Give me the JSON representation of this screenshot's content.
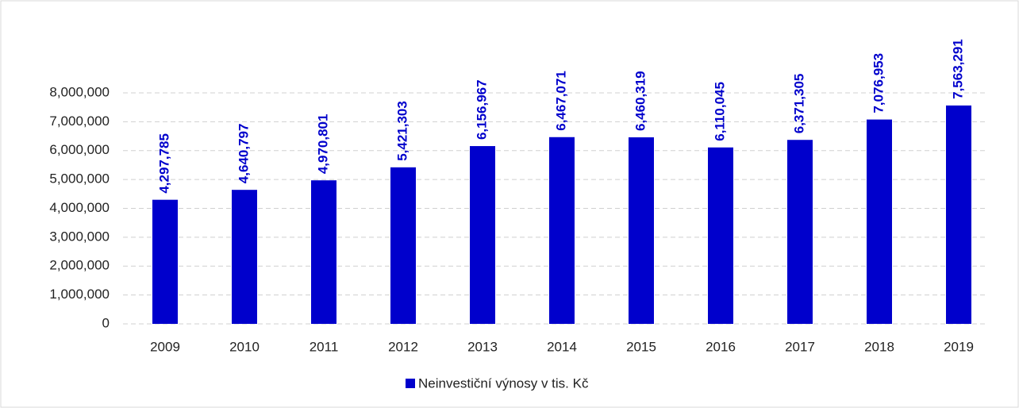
{
  "chart_data": {
    "type": "bar",
    "categories": [
      "2009",
      "2010",
      "2011",
      "2012",
      "2013",
      "2014",
      "2015",
      "2016",
      "2017",
      "2018",
      "2019"
    ],
    "series": [
      {
        "name": "Neinvestiční výnosy v tis. Kč",
        "color": "#0000cc",
        "values": [
          4297785,
          4640797,
          4970801,
          5421303,
          6156967,
          6467071,
          6460319,
          6110045,
          6371305,
          7076953,
          7563291
        ],
        "value_labels": [
          "4,297,785",
          "4,640,797",
          "4,970,801",
          "5,421,303",
          "6,156,967",
          "6,467,071",
          "6,460,319",
          "6,110,045",
          "6,371,305",
          "7,076,953",
          "7,563,291"
        ]
      }
    ],
    "ylim": [
      0,
      8000000
    ],
    "yticks": [
      0,
      {
        "value": 1000000,
        "label": "1,000,000"
      },
      {
        "value": 2000000,
        "label": "2,000,000"
      },
      {
        "value": 3000000,
        "label": "3,000,000"
      },
      {
        "value": 4000000,
        "label": "4,000,000"
      },
      {
        "value": 5000000,
        "label": "5,000,000"
      },
      {
        "value": 6000000,
        "label": "6,000,000"
      },
      {
        "value": 7000000,
        "label": "7,000,000"
      },
      {
        "value": 8000000,
        "label": "8,000,000"
      }
    ],
    "grid": true,
    "legend": "bottom"
  }
}
